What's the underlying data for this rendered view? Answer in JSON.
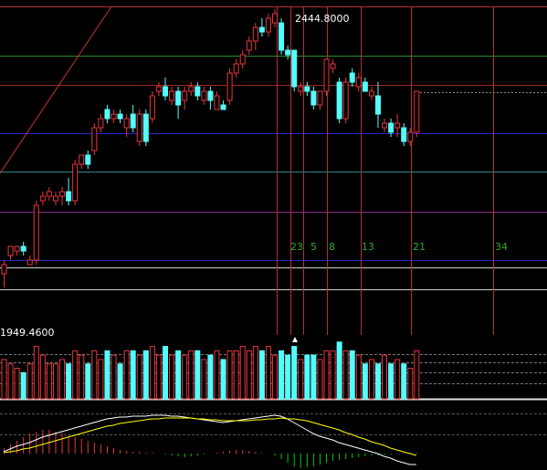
{
  "chart_data": [
    {
      "type": "candlestick",
      "open": [
        1973.8,
        2006.3,
        2014.4,
        2022.6,
        1990.1,
        1998.2,
        2103.8,
        2111.9,
        2103.8,
        2111.9,
        2120.0,
        2103.8,
        2168.7,
        2185.0,
        2193.1,
        2233.7,
        2266.2,
        2249.9,
        2258.0,
        2233.7,
        2258.0,
        2209.3,
        2258.0,
        2249.9,
        2298.6,
        2306.8,
        2282.4,
        2298.6,
        2282.4,
        2298.6,
        2306.8,
        2282.4,
        2298.6,
        2266.2,
        2274.3,
        2282.4,
        2331.1,
        2347.4,
        2371.7,
        2388.0,
        2412.3,
        2404.2,
        2420.4,
        2420.4,
        2371.7,
        2371.7,
        2298.6,
        2306.8,
        2298.6,
        2274.3,
        2298.6,
        2339.2,
        2314.9,
        2249.9,
        2331.1,
        2306.8,
        2314.9,
        2290.5,
        2290.5,
        2233.7,
        2241.8,
        2233.7,
        2233.7,
        2209.3,
        2225.6
      ],
      "high": [
        1998.2,
        2022.6,
        2022.6,
        2031.0,
        2006.3,
        2103.8,
        2120.0,
        2128.1,
        2120.0,
        2128.1,
        2144.4,
        2176.8,
        2185.0,
        2193.1,
        2241.8,
        2258.0,
        2274.3,
        2266.2,
        2266.2,
        2258.0,
        2274.3,
        2266.2,
        2266.2,
        2298.6,
        2314.9,
        2323.0,
        2306.8,
        2306.8,
        2306.8,
        2314.9,
        2314.9,
        2306.8,
        2306.8,
        2298.6,
        2282.4,
        2339.2,
        2355.5,
        2371.7,
        2396.1,
        2420.4,
        2428.6,
        2436.7,
        2444.8,
        2428.6,
        2379.8,
        2371.7,
        2314.9,
        2314.9,
        2306.8,
        2298.6,
        2355.5,
        2355.5,
        2323.0,
        2323.0,
        2339.2,
        2331.1,
        2323.0,
        2306.8,
        2314.9,
        2249.9,
        2249.9,
        2258.0,
        2241.8,
        2233.7,
        2298.6
      ],
      "low": [
        1949.46,
        1998.2,
        2006.3,
        2006.3,
        1990.1,
        1990.1,
        2095.6,
        2103.8,
        2095.6,
        2095.6,
        2095.6,
        2095.6,
        2160.6,
        2160.6,
        2185.0,
        2225.6,
        2241.8,
        2241.8,
        2241.8,
        2217.4,
        2225.6,
        2201.2,
        2201.2,
        2241.8,
        2290.5,
        2282.4,
        2274.3,
        2249.9,
        2266.2,
        2290.5,
        2282.4,
        2274.3,
        2266.2,
        2266.2,
        2266.2,
        2274.3,
        2323.0,
        2339.2,
        2363.6,
        2371.7,
        2396.1,
        2396.1,
        2412.3,
        2363.6,
        2355.5,
        2298.6,
        2290.5,
        2290.5,
        2266.2,
        2266.2,
        2290.5,
        2331.1,
        2241.8,
        2241.8,
        2306.8,
        2298.6,
        2298.6,
        2282.4,
        2233.7,
        2225.6,
        2217.4,
        2217.4,
        2201.2,
        2201.2,
        2217.4
      ],
      "close": [
        1990.1,
        2022.6,
        2022.6,
        2014.4,
        1998.2,
        2095.6,
        2111.9,
        2120.0,
        2111.9,
        2120.0,
        2103.8,
        2168.7,
        2185.0,
        2168.7,
        2233.7,
        2249.9,
        2249.9,
        2258.0,
        2249.9,
        2249.9,
        2233.7,
        2258.0,
        2209.3,
        2290.5,
        2306.8,
        2290.5,
        2298.6,
        2274.3,
        2298.6,
        2306.8,
        2290.5,
        2298.6,
        2282.4,
        2290.5,
        2266.2,
        2331.1,
        2347.4,
        2363.6,
        2388.0,
        2412.3,
        2404.2,
        2428.6,
        2436.7,
        2371.7,
        2363.6,
        2306.8,
        2306.8,
        2298.6,
        2274.3,
        2298.6,
        2355.5,
        2347.4,
        2249.9,
        2314.9,
        2314.9,
        2323.0,
        2298.6,
        2298.6,
        2258.0,
        2241.8,
        2225.6,
        2241.8,
        2209.3,
        2225.6,
        2298.6
      ],
      "ylim": [
        1868.3,
        2449.7
      ],
      "up_color": "#e8363a",
      "down_color": "#54fcfc",
      "max_label": "2444.8000",
      "min_label": "1949.4600",
      "fib_labels": [
        "23",
        "5",
        "8",
        "13",
        "21",
        "34"
      ],
      "fib_color": "#2ca82c"
    },
    {
      "type": "volume",
      "values": [
        45,
        40,
        35,
        30,
        40,
        60,
        50,
        40,
        40,
        45,
        40,
        55,
        50,
        40,
        55,
        45,
        55,
        50,
        40,
        55,
        55,
        50,
        55,
        60,
        50,
        60,
        50,
        55,
        50,
        55,
        55,
        45,
        50,
        55,
        45,
        55,
        55,
        60,
        55,
        60,
        55,
        60,
        50,
        55,
        50,
        60,
        45,
        50,
        50,
        45,
        55,
        55,
        65,
        55,
        55,
        50,
        40,
        45,
        40,
        50,
        40,
        45,
        40,
        35,
        55
      ],
      "ylim": [
        0,
        70
      ]
    },
    {
      "type": "macd",
      "dif": [
        2,
        5,
        8,
        10,
        12,
        15,
        18,
        20,
        22,
        24,
        26,
        28,
        30,
        32,
        34,
        36,
        38,
        39,
        40,
        40,
        41,
        41,
        41,
        42,
        42,
        42,
        41,
        41,
        40,
        39,
        38,
        37,
        36,
        35,
        34,
        35,
        36,
        37,
        38,
        39,
        40,
        41,
        42,
        41,
        38,
        34,
        30,
        26,
        22,
        19,
        17,
        15,
        12,
        10,
        8,
        6,
        4,
        2,
        0,
        -3,
        -5,
        -8,
        -10,
        -12,
        -12
      ],
      "dea": [
        1,
        2,
        3,
        5,
        6,
        8,
        10,
        12,
        14,
        16,
        18,
        20,
        22,
        24,
        26,
        28,
        30,
        31,
        33,
        34,
        35,
        36,
        37,
        38,
        38,
        39,
        39,
        39,
        39,
        39,
        38,
        38,
        37,
        37,
        36,
        36,
        36,
        36,
        36,
        37,
        37,
        38,
        38,
        39,
        38,
        38,
        37,
        36,
        34,
        32,
        30,
        28,
        26,
        23,
        21,
        18,
        16,
        13,
        11,
        9,
        6,
        4,
        2,
        0,
        -2
      ],
      "histogram": [
        6,
        10,
        14,
        18,
        22,
        24,
        26,
        26,
        24,
        22,
        20,
        18,
        16,
        14,
        12,
        10,
        8,
        6,
        4,
        3,
        2,
        2,
        1,
        1,
        0,
        -1,
        -2,
        -3,
        -4,
        -3,
        -2,
        -1,
        0,
        1,
        2,
        3,
        4,
        4,
        3,
        2,
        1,
        0,
        -2,
        -6,
        -10,
        -14,
        -16,
        -15,
        -14,
        -12,
        -10,
        -8,
        -7,
        -6,
        -5,
        -4,
        -3,
        -2,
        -2,
        -1,
        -1,
        0,
        1,
        1,
        1
      ],
      "dif_color": "#ffffff",
      "dea_color": "#ffff00",
      "pos_color": "#e8363a",
      "neg_color": "#00c800",
      "ylim": [
        -18,
        57
      ]
    }
  ]
}
